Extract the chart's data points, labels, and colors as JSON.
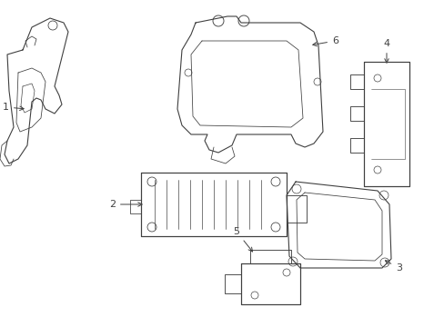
{
  "background_color": "#ffffff",
  "line_color": "#404040",
  "lw": 0.8,
  "figsize": [
    4.89,
    3.6
  ],
  "dpi": 100
}
